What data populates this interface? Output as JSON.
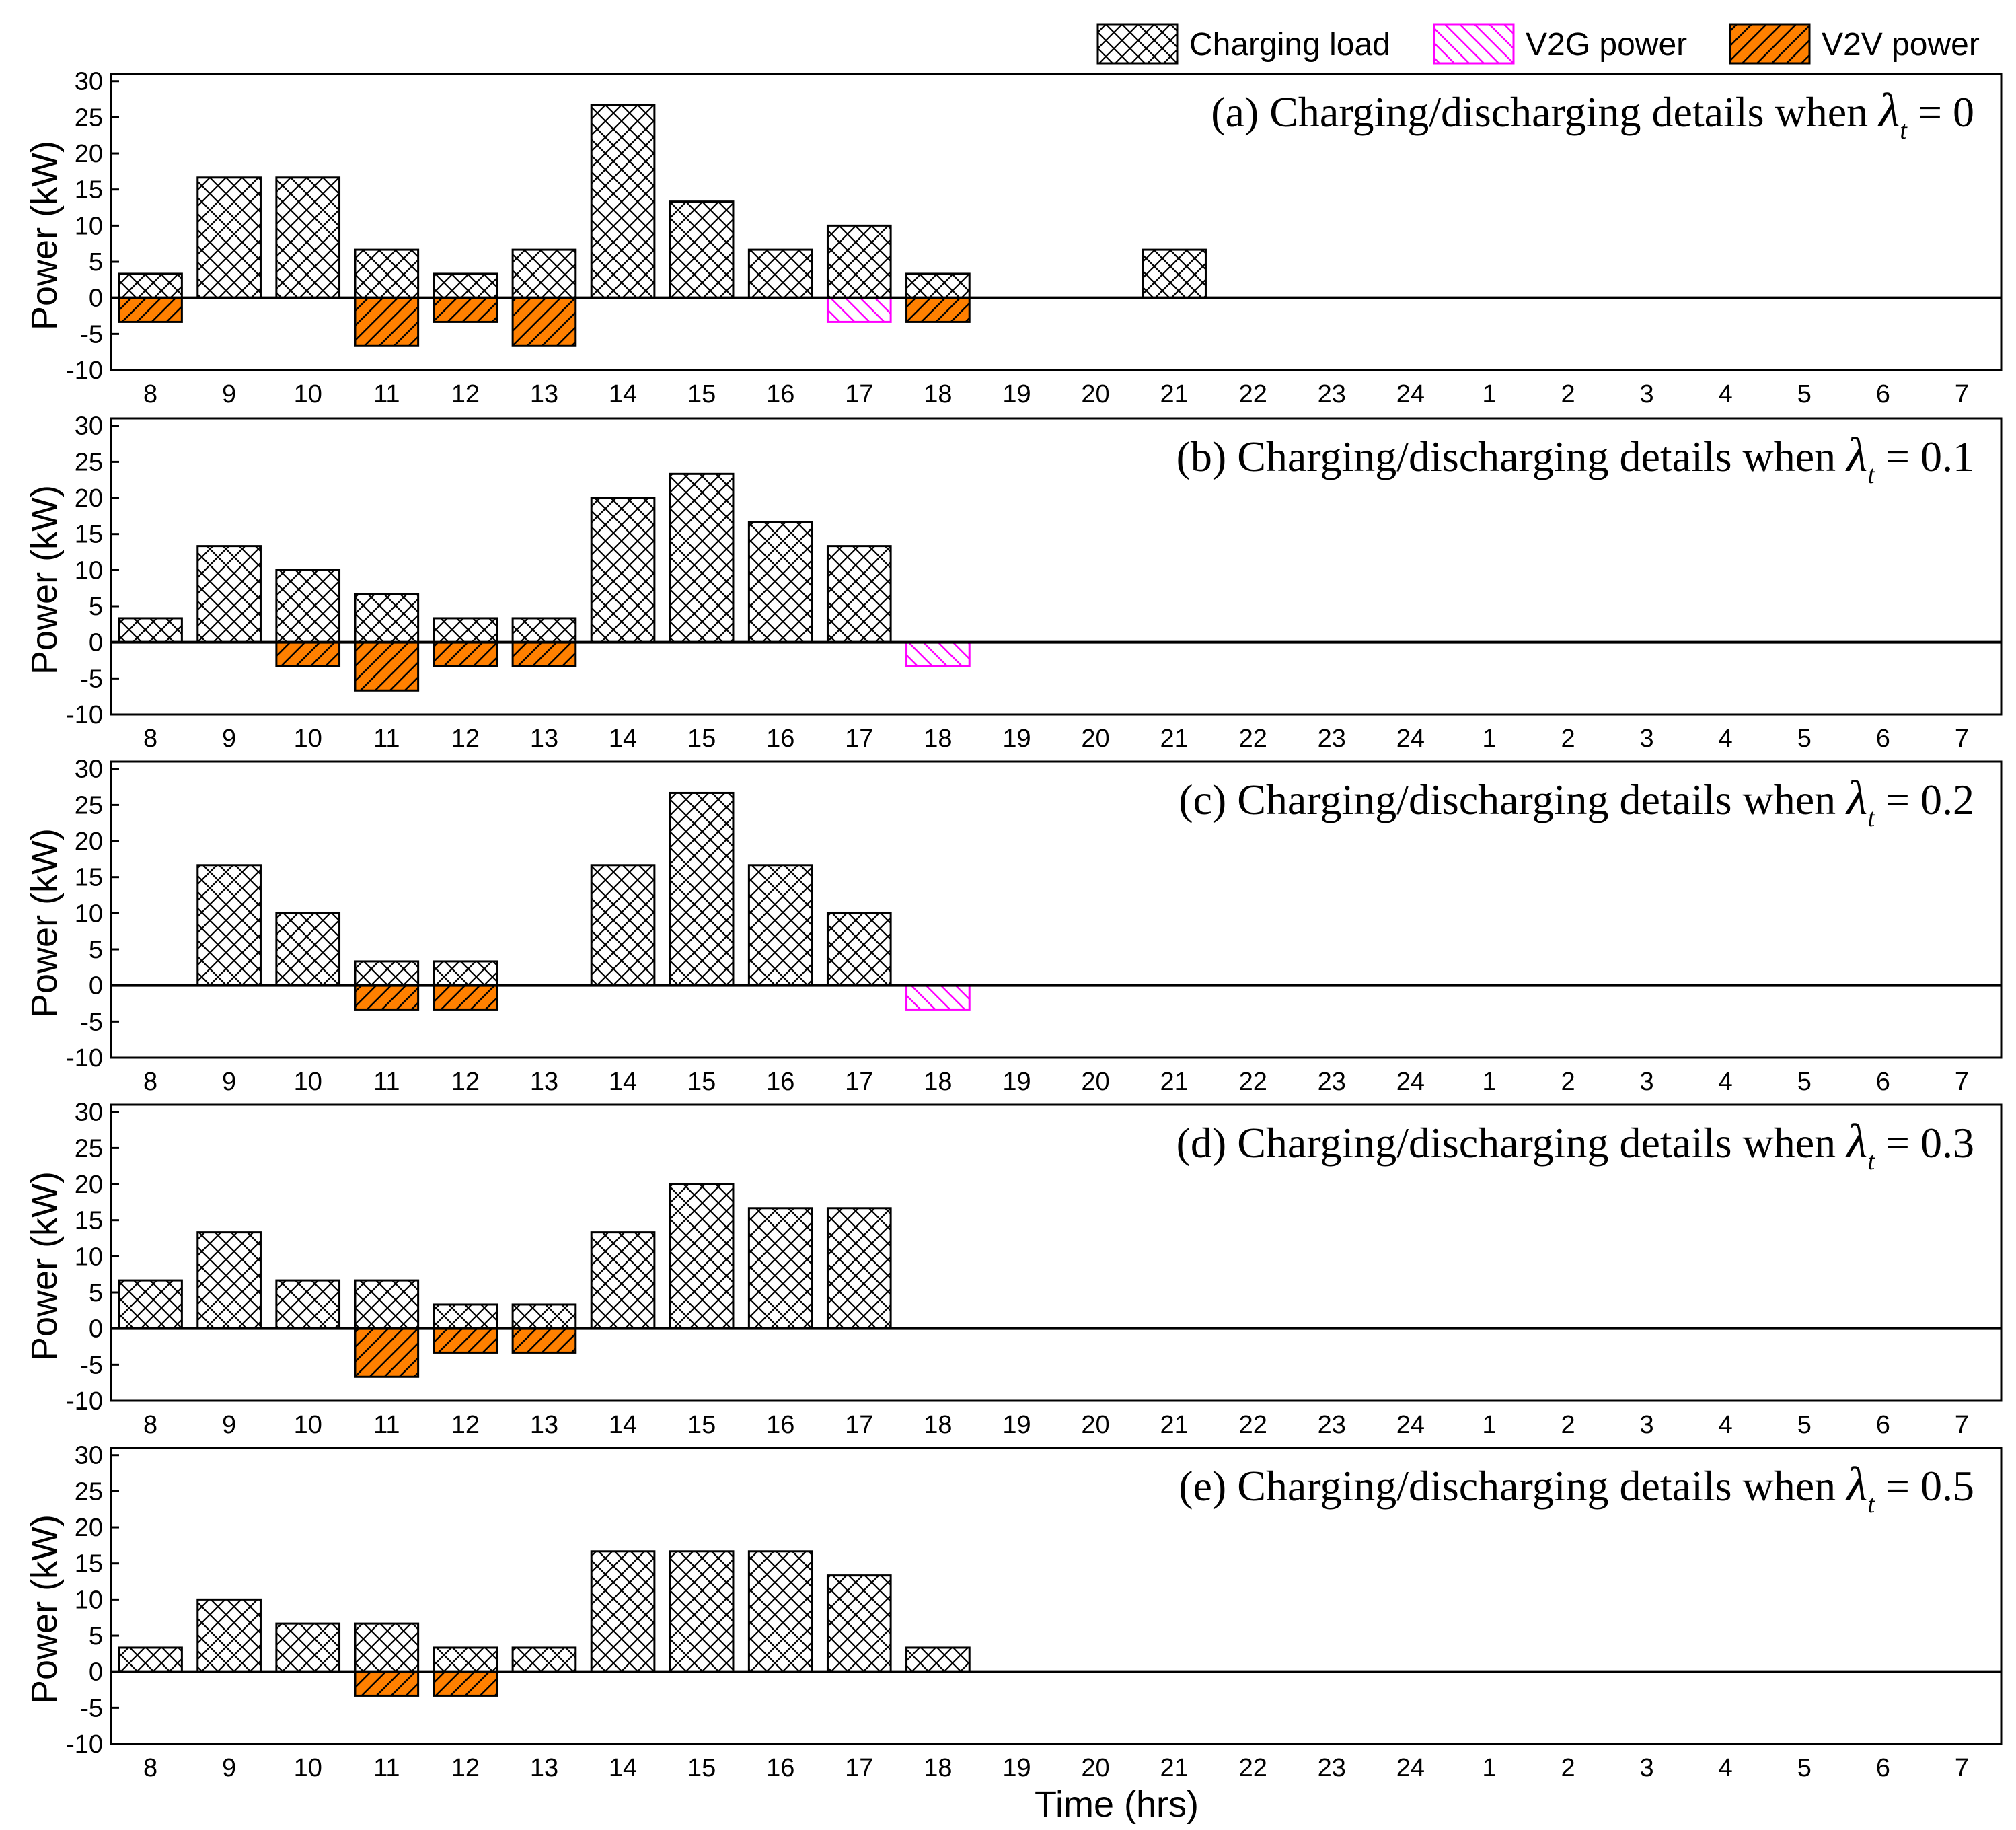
{
  "chart_data": {
    "type": "bar",
    "xlabel": "Time (hrs)",
    "ylabel": "Power (kW)",
    "categories": [
      "8",
      "9",
      "10",
      "11",
      "12",
      "13",
      "14",
      "15",
      "16",
      "17",
      "18",
      "19",
      "20",
      "21",
      "22",
      "23",
      "24",
      "1",
      "2",
      "3",
      "4",
      "5",
      "6",
      "7"
    ],
    "ylim": [
      -10,
      31
    ],
    "yticks": [
      -10,
      -5,
      0,
      5,
      10,
      15,
      20,
      25,
      30
    ],
    "legend": {
      "placement": "top-right",
      "items": [
        {
          "name": "Charging load",
          "pattern": "crosshatch",
          "color": "#000000",
          "fill": "#ffffff"
        },
        {
          "name": "V2G power",
          "pattern": "diagonal",
          "color": "#ff00ff",
          "fill": "#ffffff"
        },
        {
          "name": "V2V power",
          "pattern": "diagonal",
          "color": "#000000",
          "fill": "#ff8000"
        }
      ]
    },
    "panels": [
      {
        "label": "(a) Charging/discharging details when ",
        "symbol": "λ",
        "subscript": "t",
        "equals": " = 0",
        "series": [
          {
            "name": "Charging load",
            "values": [
              3.33,
              16.67,
              16.67,
              6.67,
              3.33,
              6.67,
              26.67,
              13.33,
              6.67,
              10,
              3.33,
              0,
              0,
              6.67,
              0,
              0,
              0,
              0,
              0,
              0,
              0,
              0,
              0,
              0
            ]
          },
          {
            "name": "V2G power",
            "values": [
              0,
              0,
              0,
              0,
              0,
              0,
              0,
              0,
              0,
              -3.33,
              0,
              0,
              0,
              0,
              0,
              0,
              0,
              0,
              0,
              0,
              0,
              0,
              0,
              0
            ]
          },
          {
            "name": "V2V power",
            "values": [
              -3.33,
              0,
              0,
              -6.67,
              -3.33,
              -6.67,
              0,
              0,
              0,
              0,
              -3.33,
              0,
              0,
              0,
              0,
              0,
              0,
              0,
              0,
              0,
              0,
              0,
              0,
              0
            ]
          }
        ]
      },
      {
        "label": "(b) Charging/discharging details when ",
        "symbol": "λ",
        "subscript": "t",
        "equals": " = 0.1",
        "series": [
          {
            "name": "Charging load",
            "values": [
              3.33,
              13.33,
              10,
              6.67,
              3.33,
              3.33,
              20,
              23.33,
              16.67,
              13.33,
              0,
              0,
              0,
              0,
              0,
              0,
              0,
              0,
              0,
              0,
              0,
              0,
              0,
              0
            ]
          },
          {
            "name": "V2G power",
            "values": [
              0,
              0,
              0,
              0,
              0,
              0,
              0,
              0,
              0,
              0,
              -3.33,
              0,
              0,
              0,
              0,
              0,
              0,
              0,
              0,
              0,
              0,
              0,
              0,
              0
            ]
          },
          {
            "name": "V2V power",
            "values": [
              0,
              0,
              -3.33,
              -6.67,
              -3.33,
              -3.33,
              0,
              0,
              0,
              0,
              0,
              0,
              0,
              0,
              0,
              0,
              0,
              0,
              0,
              0,
              0,
              0,
              0,
              0
            ]
          }
        ]
      },
      {
        "label": "(c) Charging/discharging details when ",
        "symbol": "λ",
        "subscript": "t",
        "equals": " = 0.2",
        "series": [
          {
            "name": "Charging load",
            "values": [
              0,
              16.67,
              10,
              3.33,
              3.33,
              0,
              16.67,
              26.67,
              16.67,
              10,
              0,
              0,
              0,
              0,
              0,
              0,
              0,
              0,
              0,
              0,
              0,
              0,
              0,
              0
            ]
          },
          {
            "name": "V2G power",
            "values": [
              0,
              0,
              0,
              0,
              0,
              0,
              0,
              0,
              0,
              0,
              -3.33,
              0,
              0,
              0,
              0,
              0,
              0,
              0,
              0,
              0,
              0,
              0,
              0,
              0
            ]
          },
          {
            "name": "V2V power",
            "values": [
              0,
              0,
              0,
              -3.33,
              -3.33,
              0,
              0,
              0,
              0,
              0,
              0,
              0,
              0,
              0,
              0,
              0,
              0,
              0,
              0,
              0,
              0,
              0,
              0,
              0
            ]
          }
        ]
      },
      {
        "label": "(d) Charging/discharging details when ",
        "symbol": "λ",
        "subscript": "t",
        "equals": " = 0.3",
        "series": [
          {
            "name": "Charging load",
            "values": [
              6.67,
              13.33,
              6.67,
              6.67,
              3.33,
              3.33,
              13.33,
              20,
              16.67,
              16.67,
              0,
              0,
              0,
              0,
              0,
              0,
              0,
              0,
              0,
              0,
              0,
              0,
              0,
              0
            ]
          },
          {
            "name": "V2G power",
            "values": [
              0,
              0,
              0,
              0,
              0,
              0,
              0,
              0,
              0,
              0,
              0,
              0,
              0,
              0,
              0,
              0,
              0,
              0,
              0,
              0,
              0,
              0,
              0,
              0
            ]
          },
          {
            "name": "V2V power",
            "values": [
              0,
              0,
              0,
              -6.67,
              -3.33,
              -3.33,
              0,
              0,
              0,
              0,
              0,
              0,
              0,
              0,
              0,
              0,
              0,
              0,
              0,
              0,
              0,
              0,
              0,
              0
            ]
          }
        ]
      },
      {
        "label": "(e) Charging/discharging details when ",
        "symbol": "λ",
        "subscript": "t",
        "equals": " = 0.5",
        "series": [
          {
            "name": "Charging load",
            "values": [
              3.33,
              10,
              6.67,
              6.67,
              3.33,
              3.33,
              16.67,
              16.67,
              16.67,
              13.33,
              3.33,
              0,
              0,
              0,
              0,
              0,
              0,
              0,
              0,
              0,
              0,
              0,
              0,
              0
            ]
          },
          {
            "name": "V2G power",
            "values": [
              0,
              0,
              0,
              0,
              0,
              0,
              0,
              0,
              0,
              0,
              0,
              0,
              0,
              0,
              0,
              0,
              0,
              0,
              0,
              0,
              0,
              0,
              0,
              0
            ]
          },
          {
            "name": "V2V power",
            "values": [
              0,
              0,
              0,
              -3.33,
              -3.33,
              0,
              0,
              0,
              0,
              0,
              0,
              0,
              0,
              0,
              0,
              0,
              0,
              0,
              0,
              0,
              0,
              0,
              0,
              0
            ]
          }
        ]
      }
    ]
  }
}
